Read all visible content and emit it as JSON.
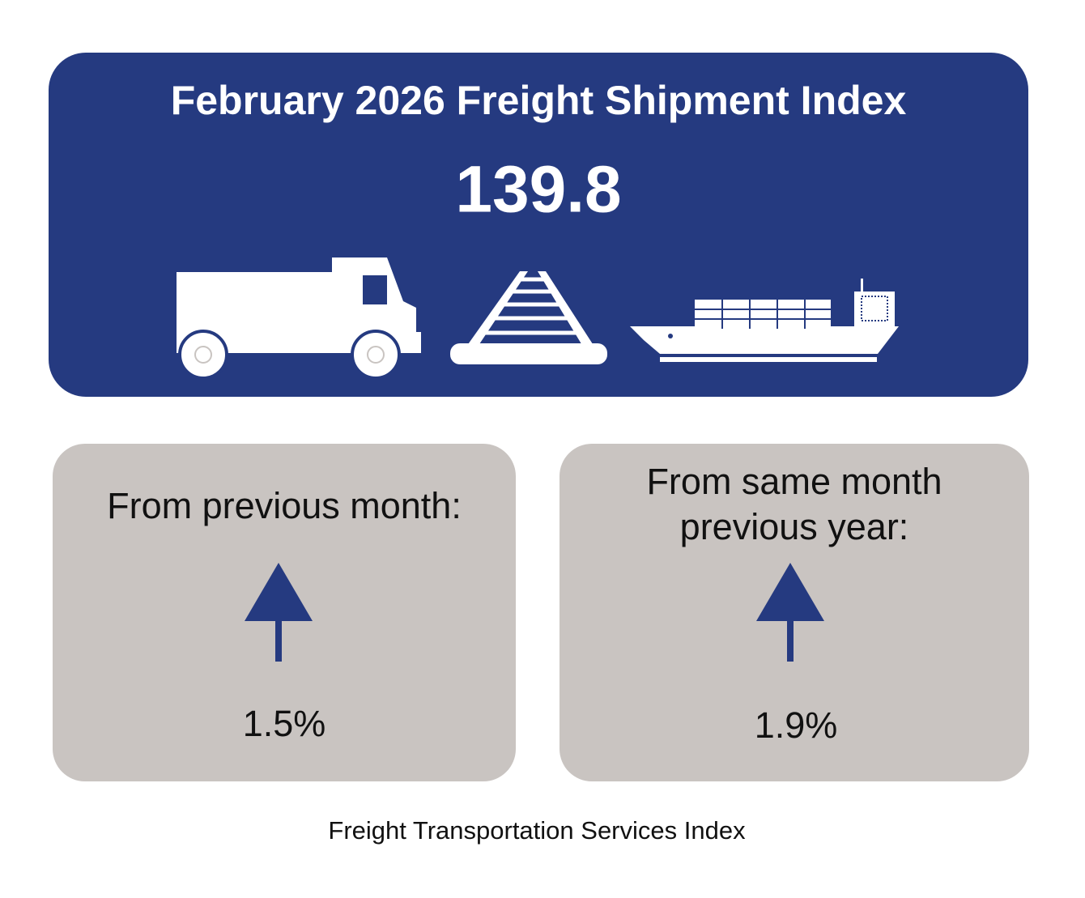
{
  "header": {
    "title": "February 2026 Freight Shipment Index",
    "value": "139.8"
  },
  "cards": [
    {
      "label_lines": [
        "From previous month:"
      ],
      "change": "1.5%"
    },
    {
      "label_lines": [
        "From same month",
        "previous year:"
      ],
      "change": "1.9%"
    }
  ],
  "footer": "Freight Transportation Services Index"
}
